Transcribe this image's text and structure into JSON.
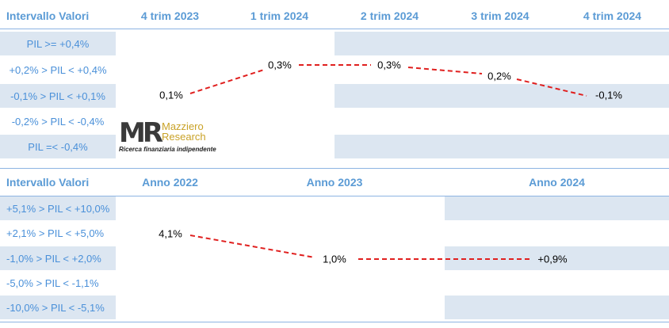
{
  "chart_data": [
    {
      "type": "line",
      "header": [
        "Intervallo Valori",
        "4 trim 2023",
        "1 trim 2024",
        "2 trim 2024",
        "3 trim 2024",
        "4 trim 2024"
      ],
      "categories": [
        "4 trim 2023",
        "1 trim 2024",
        "2 trim 2024",
        "3 trim 2024",
        "4 trim 2024"
      ],
      "rows": [
        "PIL >= +0,4%",
        "+0,2% > PIL < +0,4%",
        "-0,1% > PIL < +0,1%",
        "-0,2% > PIL < -0,4%",
        "PIL =< -0,4%"
      ],
      "values": [
        0.1,
        0.3,
        0.3,
        0.2,
        -0.1
      ],
      "labels": [
        "0,1%",
        "0,3%",
        "0,3%",
        "0,2%",
        "-0,1%"
      ],
      "line_color": "#e0201f",
      "line_style": "dashed"
    },
    {
      "type": "line",
      "header": [
        "Intervallo Valori",
        "Anno 2022",
        "Anno 2023",
        "Anno 2024"
      ],
      "categories": [
        "Anno 2022",
        "Anno 2023",
        "Anno 2024"
      ],
      "rows": [
        "+5,1% > PIL < +10,0%",
        "+2,1% > PIL < +5,0%",
        "-1,0% > PIL < +2,0%",
        "-5,0% > PIL < -1,1%",
        "-10,0% > PIL < -5,1%"
      ],
      "values": [
        4.1,
        1.0,
        0.9
      ],
      "labels": [
        "4,1%",
        "1,0%",
        "+0,9%"
      ],
      "line_color": "#e0201f",
      "line_style": "dashed"
    }
  ],
  "logo": {
    "mark": "MR",
    "name_line1": "Mazziero",
    "name_line2": "Research",
    "tagline": "Ricerca finanziaria indipendente"
  },
  "colors": {
    "header_text": "#5b9bd5",
    "row_label_text": "#4a90d9",
    "band_fill": "#dce6f1",
    "rule": "#8db4e2"
  }
}
